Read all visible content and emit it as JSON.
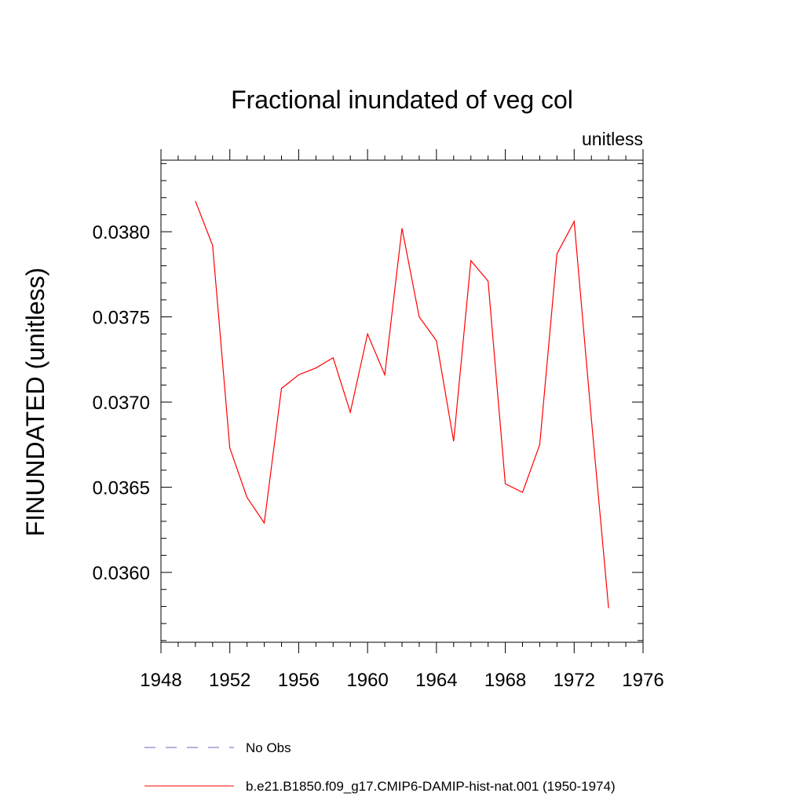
{
  "chart_data": {
    "type": "line",
    "title": "Fractional inundated of veg col",
    "units_label": "unitless",
    "xlabel": "",
    "ylabel": "FINUNDATED  (unitless)",
    "xlim": [
      1948,
      1976
    ],
    "ylim": [
      0.03559,
      0.03842
    ],
    "x_ticks": [
      1948,
      1952,
      1956,
      1960,
      1964,
      1968,
      1972,
      1976
    ],
    "y_ticks": [
      {
        "value": 0.036,
        "label": "0.0360"
      },
      {
        "value": 0.0365,
        "label": "0.0365"
      },
      {
        "value": 0.037,
        "label": "0.0370"
      },
      {
        "value": 0.0375,
        "label": "0.0375"
      },
      {
        "value": 0.038,
        "label": "0.0380"
      }
    ],
    "grid": false,
    "legend_position": "bottom",
    "legend": [
      {
        "name": "No Obs",
        "color": "#6e66b3",
        "dash": "dashed"
      },
      {
        "name": "b.e21.B1850.f09_g17.CMIP6-DAMIP-hist-nat.001 (1950-1974)",
        "color": "#ff0000",
        "dash": "solid"
      }
    ],
    "series": [
      {
        "name": "b.e21.B1850.f09_g17.CMIP6-DAMIP-hist-nat.001 (1950-1974)",
        "color": "#ff0000",
        "x": [
          1950,
          1951,
          1952,
          1953,
          1954,
          1955,
          1956,
          1957,
          1958,
          1959,
          1960,
          1961,
          1962,
          1963,
          1964,
          1965,
          1966,
          1967,
          1968,
          1969,
          1970,
          1971,
          1972,
          1973,
          1974
        ],
        "y": [
          0.03818,
          0.03792,
          0.03673,
          0.03644,
          0.03629,
          0.03708,
          0.03716,
          0.0372,
          0.03726,
          0.03694,
          0.0374,
          0.03716,
          0.03802,
          0.0375,
          0.03736,
          0.03677,
          0.03783,
          0.03771,
          0.03652,
          0.03647,
          0.03675,
          0.03787,
          0.03806,
          0.0369,
          0.03579
        ]
      }
    ]
  }
}
